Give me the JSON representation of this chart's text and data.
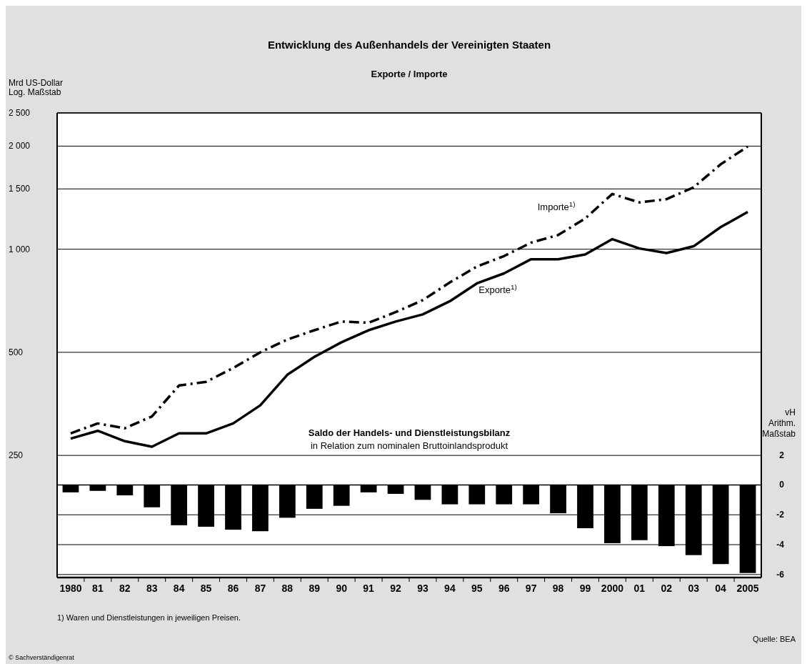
{
  "chart_data": {
    "type": "line",
    "title": "Entwicklung des Außenhandels der Vereinigten Staaten",
    "subtitle": "Exporte / Importe",
    "ylabel": "Mrd US-Dollar\nLog. Maßstab",
    "y2label": "vH\nArithm.\nMaßstab",
    "log": "y",
    "grid": "y",
    "legend": false,
    "marker": "none",
    "categories": [
      "1980",
      "81",
      "82",
      "83",
      "84",
      "85",
      "86",
      "87",
      "88",
      "89",
      "90",
      "91",
      "92",
      "93",
      "94",
      "95",
      "96",
      "97",
      "98",
      "99",
      "2000",
      "01",
      "02",
      "03",
      "04",
      "2005"
    ],
    "ylim": [
      110,
      2500
    ],
    "yticks": [
      250,
      500,
      {
        "value": 1000,
        "label": "1 000"
      },
      {
        "value": 1500,
        "label": "1 500"
      },
      {
        "value": 2000,
        "label": "2 000"
      },
      {
        "value": 2500,
        "label": "2 500"
      }
    ],
    "y2lim": [
      -6.2,
      24.9
    ],
    "y2ticks": [
      2,
      0,
      -2,
      -4,
      -6
    ],
    "series": [
      {
        "name": "Importe$^{1)}$",
        "color": "#000000",
        "line_style": "dashed",
        "values": [
          290,
          310,
          300,
          325,
          400,
          410,
          450,
          500,
          545,
          580,
          615,
          610,
          655,
          710,
          800,
          890,
          955,
          1045,
          1100,
          1230,
          1450,
          1370,
          1400,
          1515,
          1770,
          1995
        ]
      },
      {
        "name": "Exporte$^{1)}$",
        "color": "#000000",
        "line_style": "solid",
        "values": [
          280,
          295,
          275,
          265,
          290,
          290,
          310,
          350,
          430,
          485,
          535,
          580,
          615,
          645,
          705,
          795,
          850,
          935,
          935,
          965,
          1070,
          1005,
          975,
          1020,
          1160,
          1285
        ]
      },
      {
        "type": "bar",
        "axis": "y2",
        "color": "#000000",
        "values": [
          -0.5,
          -0.4,
          -0.7,
          -1.5,
          -2.7,
          -2.8,
          -3.0,
          -3.1,
          -2.2,
          -1.6,
          -1.4,
          -0.5,
          -0.6,
          -1.0,
          -1.3,
          -1.3,
          -1.3,
          -1.3,
          -1.9,
          -2.9,
          -3.9,
          -3.7,
          -4.1,
          -4.7,
          -5.3,
          -5.9
        ]
      }
    ],
    "annotations": [
      "Saldo der Handels- und Dienstleistungsbilanz",
      "in Relation zum nominalen Bruttoinlandsprodukt",
      "1) Waren und Dienstleistungen in jeweiligen Preisen.",
      "Quelle: BEA",
      "© Sachverständigenrat"
    ]
  }
}
